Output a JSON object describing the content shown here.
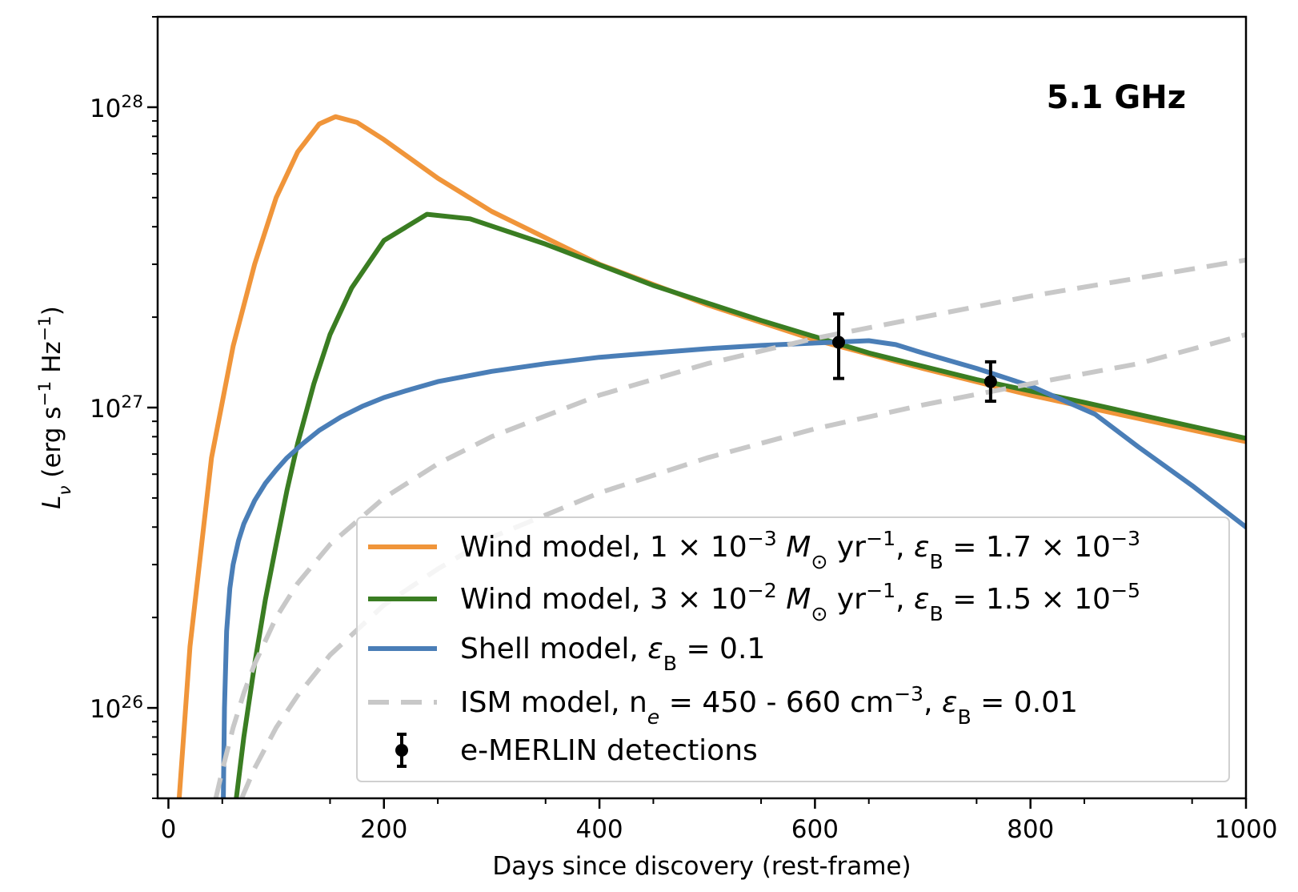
{
  "chart_data": {
    "type": "line",
    "annotation": "5.1 GHz",
    "xlabel": "Days since discovery (rest-frame)",
    "ylabel": {
      "parts": [
        {
          "t": "L",
          "style": "italic"
        },
        {
          "t": "ν",
          "style": "italic-sub"
        },
        {
          "t": " (erg s",
          "style": "normal"
        },
        {
          "t": "−1",
          "style": "sup"
        },
        {
          "t": " Hz",
          "style": "normal"
        },
        {
          "t": "−1",
          "style": "sup"
        },
        {
          "t": ")",
          "style": "normal"
        }
      ]
    },
    "xlim": [
      -10,
      1000
    ],
    "ylim": [
      5e+25,
      2e+28
    ],
    "yscale": "log",
    "x_ticks": [
      0,
      200,
      400,
      600,
      800,
      1000
    ],
    "x_tick_labels": [
      "0",
      "200",
      "400",
      "600",
      "800",
      "1000"
    ],
    "y_ticks": [
      1e+26,
      1e+27,
      1e+28
    ],
    "y_tick_labels": [
      {
        "base": "10",
        "exp": "26"
      },
      {
        "base": "10",
        "exp": "27"
      },
      {
        "base": "10",
        "exp": "28"
      }
    ],
    "colors": {
      "wind1": "#f0953a",
      "wind2": "#3a7d22",
      "shell": "#4a7eb7",
      "ism": "#c8c8c8",
      "detections": "#000000"
    },
    "series": [
      {
        "key": "wind1",
        "name": [
          {
            "t": "Wind model, 1 × 10",
            "style": "normal"
          },
          {
            "t": "−3",
            "style": "sup"
          },
          {
            "t": " ",
            "style": "normal"
          },
          {
            "t": "M",
            "style": "italic"
          },
          {
            "t": "⊙",
            "style": "sub"
          },
          {
            "t": " yr",
            "style": "normal"
          },
          {
            "t": "−1",
            "style": "sup"
          },
          {
            "t": ",  ",
            "style": "normal"
          },
          {
            "t": "ε",
            "style": "italic"
          },
          {
            "t": "B",
            "style": "sub"
          },
          {
            "t": " = 1.7 × 10",
            "style": "normal"
          },
          {
            "t": "−3",
            "style": "sup"
          }
        ],
        "x": [
          10,
          20,
          40,
          60,
          80,
          100,
          120,
          140,
          155,
          175,
          200,
          250,
          300,
          400,
          500,
          600,
          700,
          800,
          900,
          1000
        ],
        "y": [
          5e+25,
          1.6e+26,
          6.8e+26,
          1.6e+27,
          3e+27,
          5e+27,
          7.1e+27,
          8.8e+27,
          9.3e+27,
          8.9e+27,
          7.8e+27,
          5.8e+27,
          4.5e+27,
          3e+27,
          2.2e+27,
          1.68e+27,
          1.35e+27,
          1.1e+27,
          9.2e+26,
          7.7e+26
        ]
      },
      {
        "key": "wind2",
        "name": [
          {
            "t": "Wind model, 3 × 10",
            "style": "normal"
          },
          {
            "t": "−2",
            "style": "sup"
          },
          {
            "t": " ",
            "style": "normal"
          },
          {
            "t": "M",
            "style": "italic"
          },
          {
            "t": "⊙",
            "style": "sub"
          },
          {
            "t": " yr",
            "style": "normal"
          },
          {
            "t": "−1",
            "style": "sup"
          },
          {
            "t": ",  ",
            "style": "normal"
          },
          {
            "t": "ε",
            "style": "italic"
          },
          {
            "t": "B",
            "style": "sub"
          },
          {
            "t": " = 1.5 × 10",
            "style": "normal"
          },
          {
            "t": "−5",
            "style": "sup"
          }
        ],
        "x": [
          63,
          70,
          80,
          90,
          100,
          110,
          120,
          135,
          150,
          170,
          200,
          240,
          280,
          350,
          450,
          550,
          650,
          750,
          850,
          1000
        ],
        "y": [
          5e+25,
          8e+25,
          1.4e+26,
          2.3e+26,
          3.5e+26,
          5.3e+26,
          7.6e+26,
          1.2e+27,
          1.75e+27,
          2.5e+27,
          3.6e+27,
          4.4e+27,
          4.25e+27,
          3.5e+27,
          2.55e+27,
          1.95e+27,
          1.52e+27,
          1.24e+27,
          1.04e+27,
          7.9e+26
        ]
      },
      {
        "key": "shell",
        "name": [
          {
            "t": "Shell model, ",
            "style": "normal"
          },
          {
            "t": "ε",
            "style": "italic"
          },
          {
            "t": "B",
            "style": "sub"
          },
          {
            "t": " = 0.1",
            "style": "normal"
          }
        ],
        "x": [
          51,
          52,
          54,
          57,
          60,
          65,
          70,
          80,
          90,
          100,
          110,
          125,
          140,
          160,
          180,
          200,
          225,
          250,
          300,
          350,
          400,
          450,
          500,
          550,
          600,
          650,
          675,
          700,
          750,
          800,
          860,
          900,
          950,
          1000
        ],
        "y": [
          5e+25,
          1e+26,
          1.8e+26,
          2.5e+26,
          3e+26,
          3.6e+26,
          4.1e+26,
          4.9e+26,
          5.6e+26,
          6.2e+26,
          6.8e+26,
          7.6e+26,
          8.4e+26,
          9.3e+26,
          1.01e+27,
          1.08e+27,
          1.15e+27,
          1.22e+27,
          1.32e+27,
          1.4e+27,
          1.47e+27,
          1.52e+27,
          1.57e+27,
          1.61e+27,
          1.64e+27,
          1.67e+27,
          1.62e+27,
          1.52e+27,
          1.35e+27,
          1.18e+27,
          9.5e+26,
          7.4e+26,
          5.5e+26,
          4e+26
        ]
      },
      {
        "key": "ism",
        "dashed": true,
        "name": [
          {
            "t": "ISM model, n",
            "style": "normal"
          },
          {
            "t": "e",
            "style": "italic-sub"
          },
          {
            "t": " = 450 - 660 cm",
            "style": "normal"
          },
          {
            "t": "−3",
            "style": "sup"
          },
          {
            "t": ", ",
            "style": "normal"
          },
          {
            "t": "ε",
            "style": "italic"
          },
          {
            "t": "B",
            "style": "sub"
          },
          {
            "t": " = 0.01",
            "style": "normal"
          }
        ],
        "lines": [
          {
            "x": [
              44,
              50,
              60,
              70,
              80,
              100,
              120,
              150,
              200,
              250,
              300,
              400,
              500,
              600,
              700,
              800,
              900,
              1000
            ],
            "y": [
              5e+25,
              6.2e+25,
              8.6e+25,
              1.12e+26,
              1.4e+26,
              2e+26,
              2.6e+26,
              3.5e+26,
              5e+26,
              6.5e+26,
              8e+26,
              1.1e+27,
              1.4e+27,
              1.7e+27,
              2e+27,
              2.35e+27,
              2.7e+27,
              3.1e+27
            ]
          },
          {
            "x": [
              68,
              80,
              100,
              120,
              150,
              200,
              250,
              300,
              400,
              500,
              600,
              700,
              800,
              900,
              1000
            ],
            "y": [
              5e+25,
              6.3e+25,
              8.6e+25,
              1.1e+26,
              1.5e+26,
              2.2e+26,
              2.9e+26,
              3.7e+26,
              5.2e+26,
              6.8e+26,
              8.5e+26,
              1.02e+27,
              1.2e+27,
              1.4e+27,
              1.75e+27
            ]
          }
        ]
      }
    ],
    "detections": {
      "name": [
        {
          "t": "e-MERLIN detections",
          "style": "normal"
        }
      ],
      "points": [
        {
          "x": 622,
          "y": 1.65e+27,
          "ylo": 1.25e+27,
          "yhi": 2.05e+27
        },
        {
          "x": 763,
          "y": 1.22e+27,
          "ylo": 1.05e+27,
          "yhi": 1.42e+27
        }
      ]
    },
    "legend_position": "lower-right"
  }
}
